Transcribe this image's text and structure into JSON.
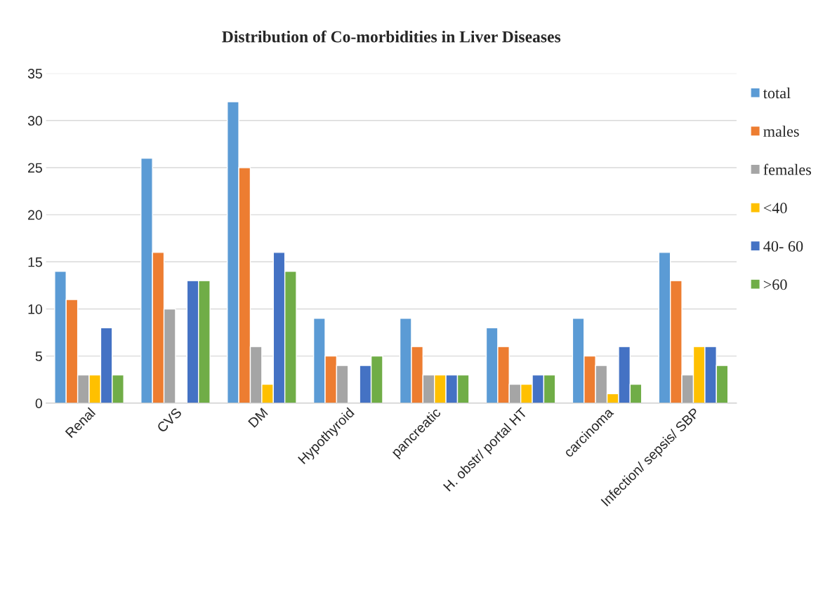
{
  "chart_data": {
    "type": "bar",
    "title": "Distribution of Co-morbidities in Liver Diseases",
    "categories": [
      "Renal",
      "CVS",
      "DM",
      "Hypothyroid",
      "pancreatic",
      "H. obstr/ portal HT",
      "carcinoma",
      "Infection/ sepsis/ SBP"
    ],
    "series": [
      {
        "name": "total",
        "color": "#5b9bd5",
        "values": [
          14,
          26,
          32,
          9,
          9,
          8,
          9,
          16
        ]
      },
      {
        "name": "males",
        "color": "#ed7d31",
        "values": [
          11,
          16,
          25,
          5,
          6,
          6,
          5,
          13
        ]
      },
      {
        "name": "females",
        "color": "#a5a5a5",
        "values": [
          3,
          10,
          6,
          4,
          3,
          2,
          4,
          3
        ]
      },
      {
        "name": "<40",
        "color": "#ffc000",
        "values": [
          3,
          null,
          2,
          null,
          3,
          2,
          1,
          6
        ]
      },
      {
        "name": "40- 60",
        "color": "#4472c4",
        "values": [
          8,
          13,
          16,
          4,
          3,
          3,
          6,
          6
        ]
      },
      {
        "name": ">60",
        "color": "#70ad47",
        "values": [
          3,
          13,
          14,
          5,
          3,
          3,
          2,
          4
        ]
      }
    ],
    "ylim": [
      0,
      35
    ],
    "yticks": [
      0,
      5,
      10,
      15,
      20,
      25,
      30,
      35
    ],
    "grid": "y",
    "legend": "right"
  }
}
